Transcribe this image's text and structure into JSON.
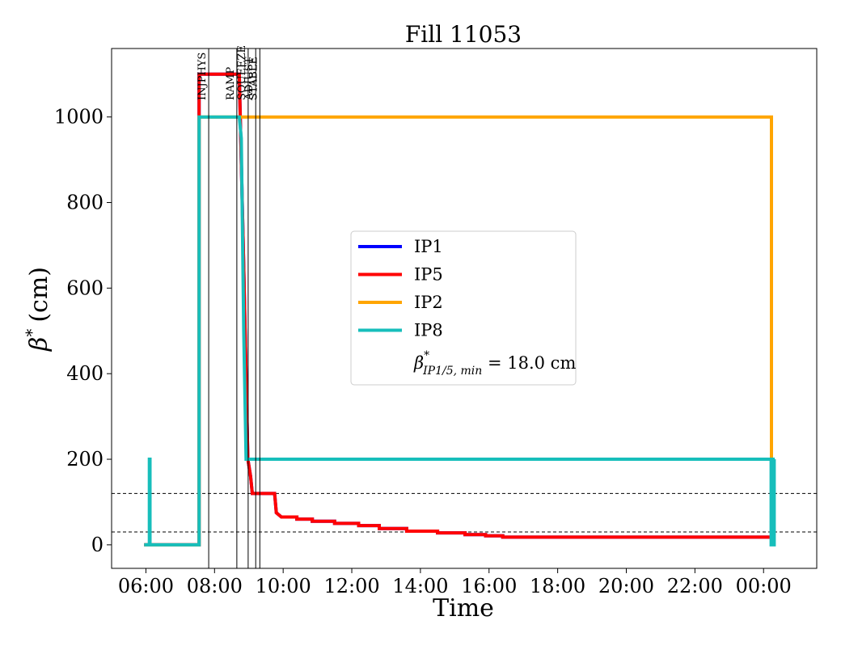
{
  "chart_data": {
    "type": "line",
    "title": "Fill 11053",
    "xlabel": "Time",
    "ylabel": "β* (cm)",
    "ylabel_symbol": "β",
    "ylabel_sup": "*",
    "ylabel_unit": "(cm)",
    "x_unit": "hours",
    "xlim": [
      5.0,
      25.55
    ],
    "ylim": [
      -55,
      1160
    ],
    "x_ticks": [
      {
        "value": 6,
        "label": "06:00"
      },
      {
        "value": 8,
        "label": "08:00"
      },
      {
        "value": 10,
        "label": "10:00"
      },
      {
        "value": 12,
        "label": "12:00"
      },
      {
        "value": 14,
        "label": "14:00"
      },
      {
        "value": 16,
        "label": "16:00"
      },
      {
        "value": 18,
        "label": "18:00"
      },
      {
        "value": 20,
        "label": "20:00"
      },
      {
        "value": 22,
        "label": "22:00"
      },
      {
        "value": 24,
        "label": "00:00"
      }
    ],
    "y_ticks": [
      {
        "value": 0,
        "label": "0"
      },
      {
        "value": 200,
        "label": "200"
      },
      {
        "value": 400,
        "label": "400"
      },
      {
        "value": 600,
        "label": "600"
      },
      {
        "value": 800,
        "label": "800"
      },
      {
        "value": 1000,
        "label": "1000"
      }
    ],
    "phases": [
      {
        "label": "INJPHYS",
        "x": 7.83
      },
      {
        "label": "RAMP",
        "x": 8.65
      },
      {
        "label": "SQUEEZE",
        "x": 8.98
      },
      {
        "label": "ADJUST",
        "x": 9.2
      },
      {
        "label": "STABLE",
        "x": 9.32
      }
    ],
    "hlines": [
      120,
      30
    ],
    "series": [
      {
        "name": "IP1",
        "color": "#0000ff",
        "x": [
          5.95,
          7.55,
          7.55,
          8.72,
          8.85,
          8.97,
          9.05,
          9.1,
          9.1,
          9.75,
          9.8,
          9.95,
          10.4,
          10.4,
          10.85,
          10.85,
          11.5,
          11.5,
          12.2,
          12.2,
          12.8,
          12.8,
          13.6,
          13.6,
          14.5,
          14.5,
          15.3,
          15.3,
          15.9,
          15.9,
          16.4,
          16.4,
          24.2
        ],
        "y": [
          0,
          0,
          1100,
          1100,
          650,
          200,
          160,
          120,
          120,
          120,
          75,
          65,
          65,
          60,
          60,
          55,
          55,
          50,
          50,
          45,
          45,
          38,
          38,
          32,
          32,
          28,
          28,
          24,
          24,
          21,
          21,
          18,
          18
        ]
      },
      {
        "name": "IP5",
        "color": "#ff0000",
        "x": [
          5.95,
          7.55,
          7.55,
          8.72,
          8.85,
          8.97,
          9.05,
          9.1,
          9.1,
          9.75,
          9.8,
          9.95,
          10.4,
          10.4,
          10.85,
          10.85,
          11.5,
          11.5,
          12.2,
          12.2,
          12.8,
          12.8,
          13.6,
          13.6,
          14.5,
          14.5,
          15.3,
          15.3,
          15.9,
          15.9,
          16.4,
          16.4,
          24.2
        ],
        "y": [
          0,
          0,
          1100,
          1100,
          650,
          200,
          160,
          120,
          120,
          120,
          75,
          65,
          65,
          60,
          60,
          55,
          55,
          50,
          50,
          45,
          45,
          38,
          38,
          32,
          32,
          28,
          28,
          24,
          24,
          21,
          21,
          18,
          18
        ]
      },
      {
        "name": "IP2",
        "color": "#ffa500",
        "x": [
          5.95,
          7.55,
          7.55,
          24.23,
          24.23
        ],
        "y": [
          0,
          0,
          1000,
          1000,
          0
        ]
      },
      {
        "name": "IP8",
        "color": "#17bebb",
        "x": [
          5.95,
          6.1,
          6.1,
          6.12,
          6.12,
          7.55,
          7.55,
          8.72,
          8.78,
          8.85,
          8.92,
          24.22,
          24.22,
          24.25,
          24.25,
          24.28,
          24.28,
          24.31,
          24.31
        ],
        "y": [
          0,
          0,
          200,
          200,
          0,
          0,
          1000,
          1000,
          950,
          500,
          200,
          200,
          0,
          0,
          200,
          200,
          0,
          0,
          200
        ]
      }
    ],
    "legend": {
      "position": "center",
      "extra_entry": {
        "symbol": "β",
        "sup": "*",
        "sub": "IP1/5, min",
        "text": " = 18.0 cm"
      }
    }
  }
}
